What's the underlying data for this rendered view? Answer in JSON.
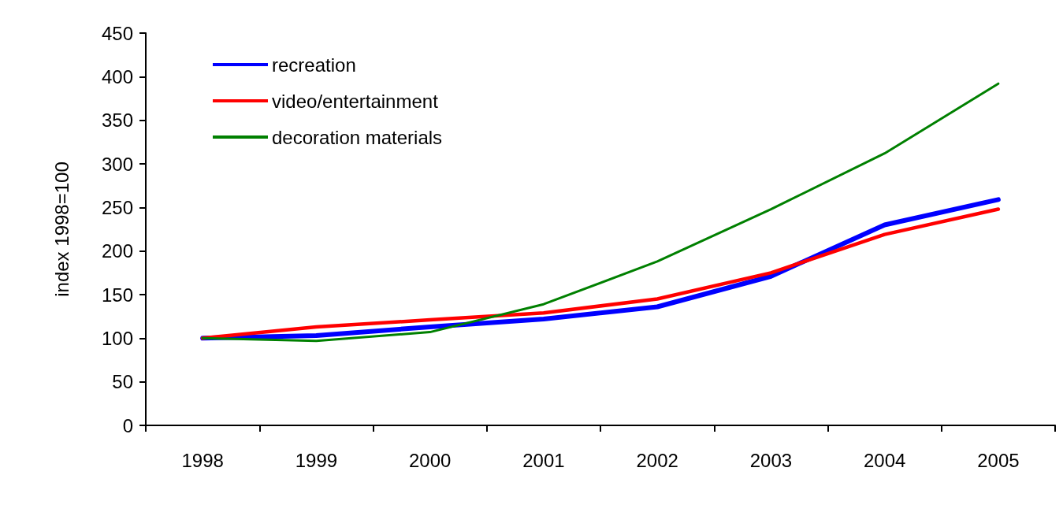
{
  "chart_data": {
    "type": "line",
    "ylabel": "index 1998=100",
    "categories": [
      "1998",
      "1999",
      "2000",
      "2001",
      "2002",
      "2003",
      "2004",
      "2005"
    ],
    "series": [
      {
        "name": "recreation",
        "color": "#0000ff",
        "values": [
          100,
          103,
          113,
          122,
          136,
          171,
          230,
          259
        ]
      },
      {
        "name": "video/entertainment",
        "color": "#ff0000",
        "values": [
          100,
          113,
          121,
          129,
          145,
          175,
          219,
          248
        ]
      },
      {
        "name": "decoration materials",
        "color": "#008000",
        "values": [
          100,
          97,
          107,
          139,
          188,
          248,
          312,
          392
        ]
      }
    ],
    "ylim": [
      0,
      450
    ],
    "yticks": [
      0,
      50,
      100,
      150,
      200,
      250,
      300,
      350,
      400,
      450
    ],
    "grid": false,
    "legend": "top left",
    "marker": "none",
    "line_style": "solid"
  }
}
